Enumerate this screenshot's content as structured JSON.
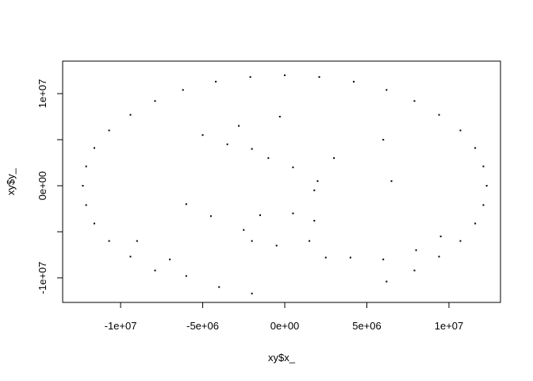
{
  "chart_data": {
    "type": "scatter",
    "x_label": "xy$x_",
    "y_label": "xy$y_",
    "color": "#000000",
    "xlim": [
      -13530000.0,
      13140000.0
    ],
    "ylim": [
      -12670000.0,
      13530000.0
    ],
    "xticks": [
      {
        "value": -10000000.0,
        "label": "-1e+07"
      },
      {
        "value": -5000000.0,
        "label": "-5e+06"
      },
      {
        "value": 0,
        "label": "0e+00"
      },
      {
        "value": 5000000.0,
        "label": "5e+06"
      },
      {
        "value": 10000000.0,
        "label": "1e+07"
      }
    ],
    "yticks": [
      {
        "value": -10000000.0,
        "label": "-1e+07"
      },
      {
        "value": -5000000.0,
        "label": null
      },
      {
        "value": 0,
        "label": "0e+00"
      },
      {
        "value": 5000000.0,
        "label": null
      },
      {
        "value": 10000000.0,
        "label": "1e+07"
      }
    ],
    "x": [
      12300000.0,
      12100000.0,
      11600000.0,
      10700000.0,
      9400000.0,
      7900000.0,
      6200000.0,
      4200000.0,
      2100000.0,
      0,
      -2100000.0,
      -4200000.0,
      -6200000.0,
      -7900000.0,
      -9400000.0,
      -10700000.0,
      -11600000.0,
      -12100000.0,
      -12300000.0,
      -12100000.0,
      -11600000.0,
      -10700000.0,
      -9400000.0,
      -7900000.0,
      6200000.0,
      7900000.0,
      9400000.0,
      10700000.0,
      11600000.0,
      12100000.0,
      -2500000.0,
      -1500000.0,
      500000.0,
      1800000.0,
      1500000.0,
      -500000.0,
      -2000000.0,
      -5000000.0,
      -3500000.0,
      -2000000.0,
      -1000000.0,
      500000.0,
      -2800000.0,
      -300000.0,
      2000000.0,
      1800000.0,
      2500000.0,
      4000000.0,
      6000000.0,
      8000000.0,
      9500000.0,
      -9000000.0,
      -7000000.0,
      -6000000.0,
      -4000000.0,
      -2000000.0,
      6000000.0,
      3000000.0,
      6500000.0,
      -6000000.0,
      -4500000.0
    ],
    "values": [
      0,
      2100000.0,
      4100000.0,
      6000000.0,
      7700000.0,
      9200000.0,
      10400000.0,
      11300000.0,
      11800000.0,
      12000000.0,
      11800000.0,
      11300000.0,
      10400000.0,
      9200000.0,
      7700000.0,
      6000000.0,
      4100000.0,
      2100000.0,
      0,
      -2100000.0,
      -4100000.0,
      -6000000.0,
      -7700000.0,
      -9200000.0,
      -10400000.0,
      -9200000.0,
      -7700000.0,
      -6000000.0,
      -4100000.0,
      -2100000.0,
      -4800000.0,
      -3200000.0,
      -3000000.0,
      -3800000.0,
      -6000000.0,
      -6500000.0,
      -6000000.0,
      5500000.0,
      4500000.0,
      4000000.0,
      3000000.0,
      2000000.0,
      6500000.0,
      7500000.0,
      500000.0,
      -500000.0,
      -7800000.0,
      -7800000.0,
      -8000000.0,
      -7000000.0,
      -5500000.0,
      -6000000.0,
      -8000000.0,
      -9800000.0,
      -11000000.0,
      -11700000.0,
      5000000.0,
      3000000.0,
      500000.0,
      -2000000.0,
      -3300000.0
    ]
  }
}
